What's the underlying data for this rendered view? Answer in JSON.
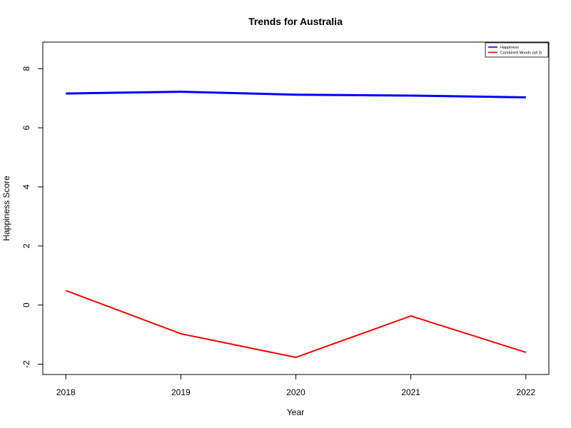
{
  "chart_data": {
    "type": "line",
    "title": "Trends for Australia",
    "xlabel": "Year",
    "ylabel": "Happiness Score",
    "x": [
      "2018",
      "2019",
      "2020",
      "2021",
      "2022"
    ],
    "xlim": [
      2017.8,
      2022.2
    ],
    "ylim": [
      -2.35,
      8.9
    ],
    "yticks": [
      -2,
      0,
      2,
      4,
      6,
      8
    ],
    "grid": false,
    "legend_position": "top-right",
    "series": [
      {
        "name": "Happiness",
        "color": "#0000ff",
        "values": [
          7.16,
          7.22,
          7.12,
          7.09,
          7.03
        ]
      },
      {
        "name": "Combined Moods (all 3)",
        "color": "#ff0000",
        "values": [
          0.49,
          -0.97,
          -1.77,
          -0.37,
          -1.6
        ]
      }
    ]
  }
}
